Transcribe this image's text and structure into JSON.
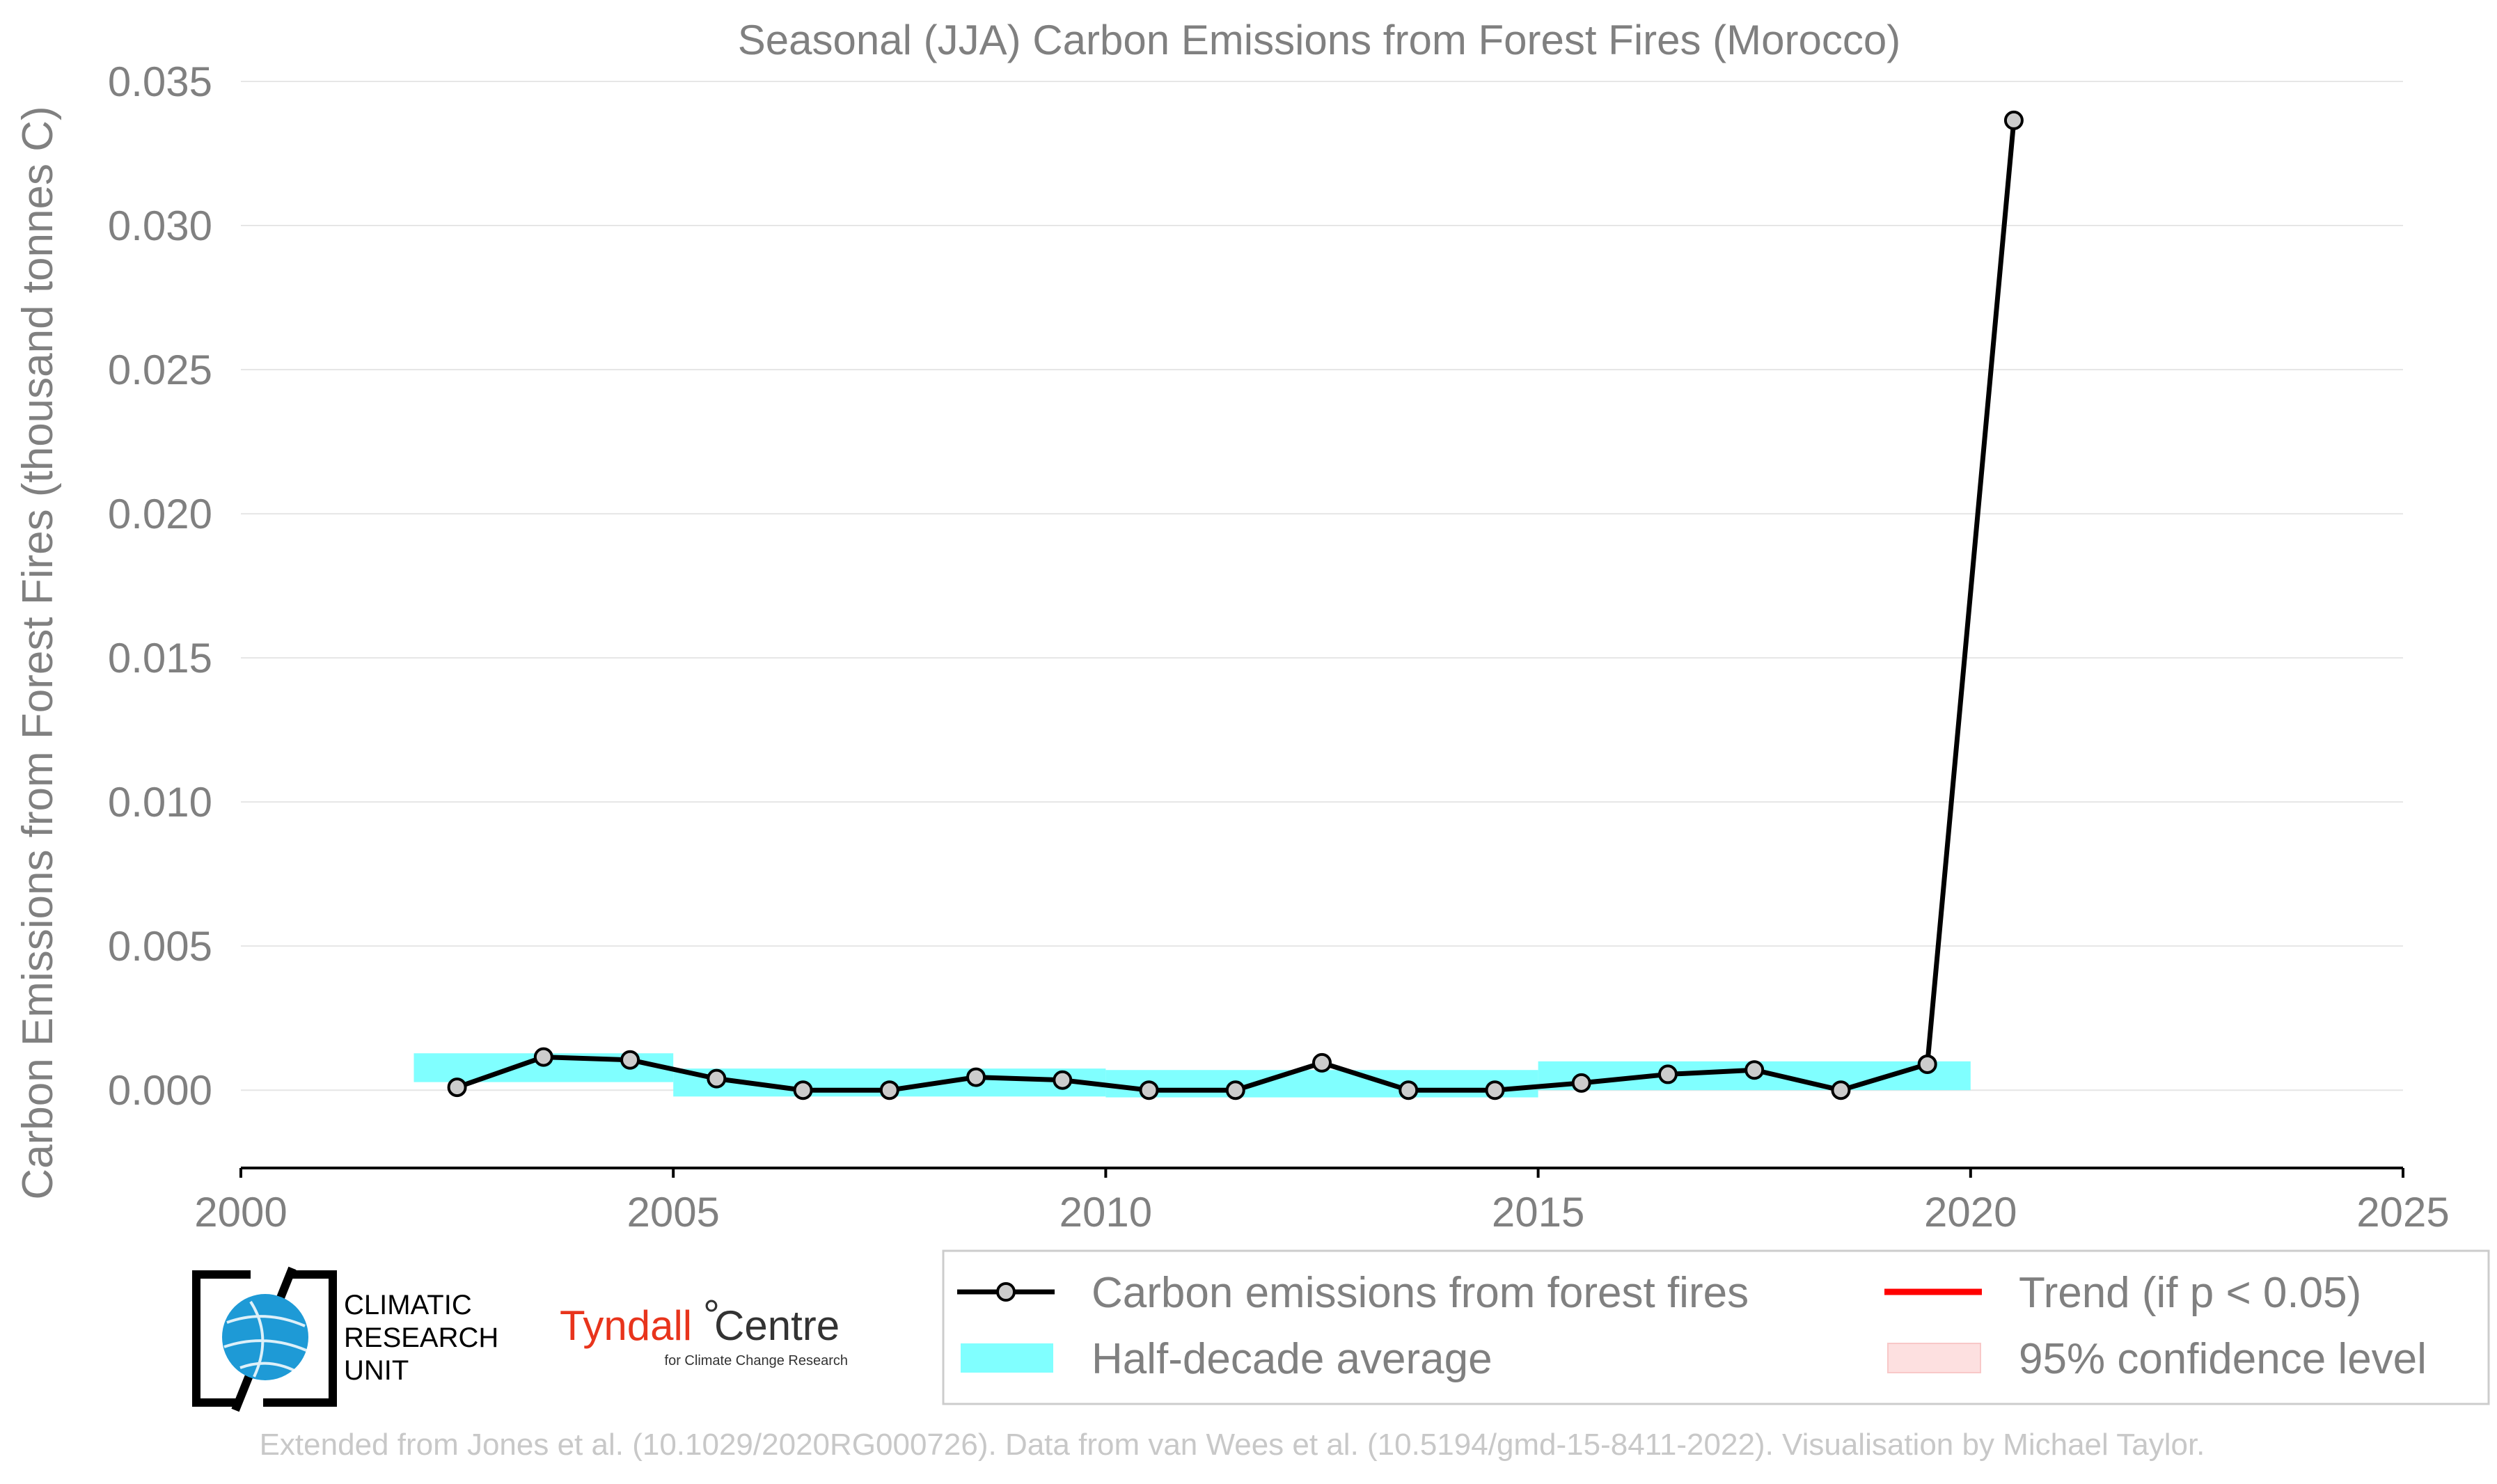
{
  "chart_data": {
    "type": "line",
    "title": "Seasonal (JJA) Carbon Emissions from Forest Fires (Morocco)",
    "xlabel": "",
    "ylabel": "Carbon Emissions from Forest Fires (thousand tonnes C)",
    "xlim": [
      2000,
      2025
    ],
    "ylim": [
      -0.0027,
      0.035
    ],
    "x_ticks": [
      2000,
      2005,
      2010,
      2015,
      2020,
      2025
    ],
    "x_tick_labels": [
      "2000",
      "2005",
      "2010",
      "2015",
      "2020",
      "2025"
    ],
    "y_ticks": [
      0.0,
      0.005,
      0.01,
      0.015,
      0.02,
      0.025,
      0.03,
      0.035
    ],
    "y_tick_labels": [
      "0.000",
      "0.005",
      "0.010",
      "0.015",
      "0.020",
      "0.025",
      "0.030",
      "0.035"
    ],
    "grid": "horizontal",
    "legend_position": "bottom",
    "series": [
      {
        "name": "Carbon emissions from forest fires",
        "color": "#000000",
        "marker_color": "#cccccc",
        "x": [
          2002.5,
          2003.5,
          2004.5,
          2005.5,
          2006.5,
          2007.5,
          2008.5,
          2009.5,
          2010.5,
          2011.5,
          2012.5,
          2013.5,
          2014.5,
          2015.5,
          2016.5,
          2017.5,
          2018.5,
          2019.5,
          2020.5
        ],
        "y": [
          0.0001,
          0.00115,
          0.00105,
          0.0004,
          0.0,
          0.0,
          0.00045,
          0.00035,
          0.0,
          0.0,
          0.00095,
          0.0,
          0.0,
          0.00025,
          0.00055,
          0.0007,
          0.0,
          0.0009,
          0.03365
        ]
      }
    ],
    "half_decade_average": {
      "name": "Half-decade average",
      "color": "#80ffff",
      "x_start": [
        2002,
        2005,
        2010,
        2015
      ],
      "x_end": [
        2005,
        2010,
        2015,
        2020
      ],
      "y_low": [
        0.00028,
        -0.00022,
        -0.00025,
        0.0
      ],
      "y_high": [
        0.00128,
        0.00075,
        0.0007,
        0.001
      ]
    },
    "legend": [
      {
        "label": "Carbon emissions from forest fires",
        "kind": "line-marker",
        "color": "#000000"
      },
      {
        "label": "Trend (if p < 0.05)",
        "kind": "line",
        "color": "#ff0000"
      },
      {
        "label": "Half-decade average",
        "kind": "patch",
        "color": "#80ffff"
      },
      {
        "label": "95% confidence level",
        "kind": "patch",
        "color": "#fde0e0"
      }
    ]
  },
  "logos": {
    "cru_lines": [
      "CLIMATIC",
      "RESEARCH",
      "UNIT"
    ],
    "tyndall_name": "Tyndall",
    "tyndall_degree": "°",
    "tyndall_centre": "Centre",
    "tyndall_sub": "for Climate Change Research",
    "colors": {
      "cru_globe": "#1e9ad6",
      "tyndall_red": "#e8341c"
    }
  },
  "footer": "Extended from Jones et al. (10.1029/2020RG000726). Data from van Wees et al. (10.5194/gmd-15-8411-2022). Visualisation by Michael Taylor.",
  "colors": {
    "text": "#808080",
    "grid": "#e6e6e6",
    "axis": "#000000",
    "footer": "#c8c8c8"
  }
}
